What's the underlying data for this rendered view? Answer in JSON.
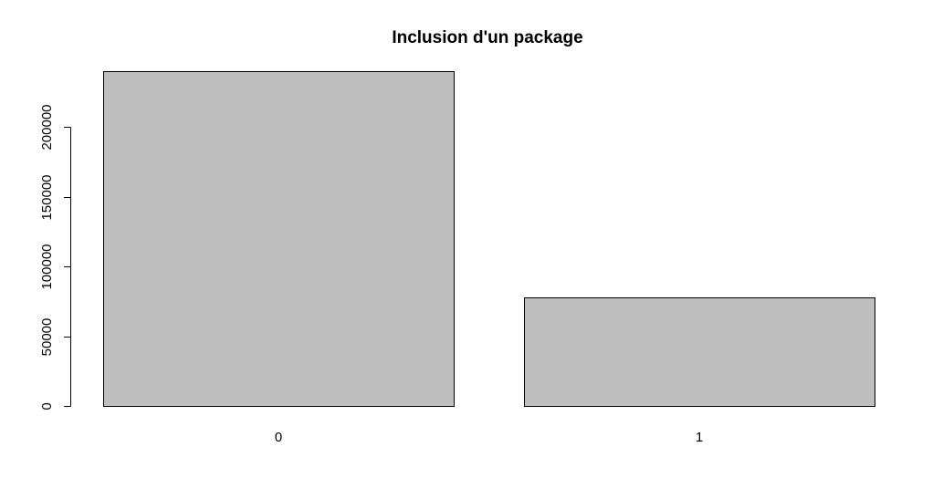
{
  "chart_data": {
    "type": "bar",
    "title": "Inclusion d'un package",
    "xlabel": "",
    "ylabel": "",
    "categories": [
      "0",
      "1"
    ],
    "values": [
      240000,
      78000
    ],
    "ylim": [
      0,
      240000
    ],
    "y_ticks": [
      0,
      50000,
      100000,
      150000,
      200000
    ],
    "y_tick_labels": [
      "0",
      "50000",
      "100000",
      "150000",
      "200000"
    ],
    "grid": false,
    "legend": "none",
    "bar_fill": "#bebebe",
    "bar_stroke": "#000000"
  }
}
